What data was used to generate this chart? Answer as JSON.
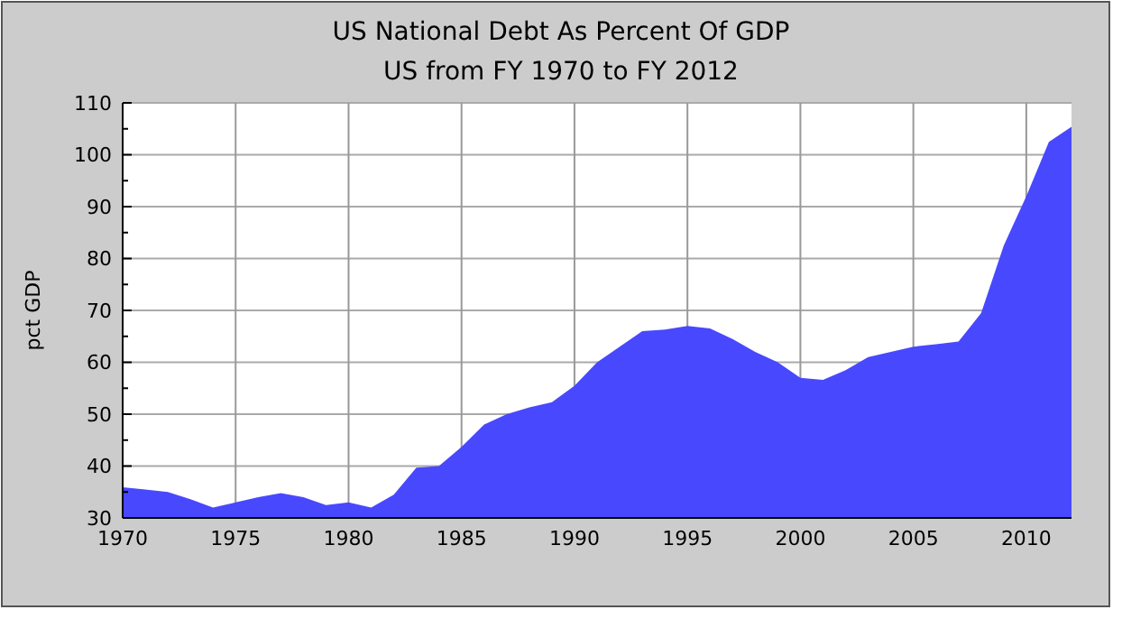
{
  "chart_data": {
    "type": "area",
    "title": "US National Debt As Percent Of GDP",
    "subtitle": "US from FY 1970 to FY 2012",
    "ylabel": "pct GDP",
    "x": [
      1970,
      1971,
      1972,
      1973,
      1974,
      1975,
      1976,
      1977,
      1978,
      1979,
      1980,
      1981,
      1982,
      1983,
      1984,
      1985,
      1986,
      1987,
      1988,
      1989,
      1990,
      1991,
      1992,
      1993,
      1994,
      1995,
      1996,
      1997,
      1998,
      1999,
      2000,
      2001,
      2002,
      2003,
      2004,
      2005,
      2006,
      2007,
      2008,
      2009,
      2010,
      2011,
      2012
    ],
    "series": [
      {
        "color": "#4848ff",
        "values": [
          35.9,
          35.5,
          35,
          33.6,
          32,
          33,
          34,
          34.8,
          34,
          32.5,
          33,
          32,
          34.5,
          39.7,
          40,
          43.7,
          48,
          50,
          51.3,
          52.3,
          55.5,
          60,
          63,
          66,
          66.3,
          67,
          66.5,
          64.5,
          62,
          60,
          57,
          56.6,
          58.5,
          61,
          62,
          63,
          63.5,
          64,
          69.5,
          82.5,
          92,
          102.5,
          105.4
        ]
      }
    ],
    "xlim": [
      1970,
      2012
    ],
    "xticks": [
      1970,
      1975,
      1980,
      1985,
      1990,
      1995,
      2000,
      2005,
      2010
    ],
    "ylim": [
      30,
      110
    ],
    "yticks": [
      30,
      40,
      50,
      60,
      70,
      80,
      90,
      100,
      110
    ],
    "grid": true
  }
}
